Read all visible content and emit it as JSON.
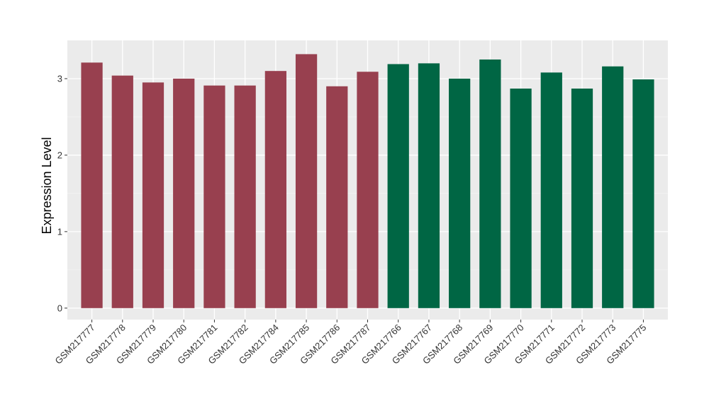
{
  "chart_data": {
    "type": "bar",
    "title": "",
    "xlabel": "",
    "ylabel": "Expression Level",
    "ylim": [
      -0.15,
      3.5
    ],
    "yticks": [
      0,
      1,
      2,
      3
    ],
    "grid": true,
    "legend": "none",
    "background": "#EBEBEB",
    "categories": [
      "GSM217777",
      "GSM217778",
      "GSM217779",
      "GSM217780",
      "GSM217781",
      "GSM217782",
      "GSM217784",
      "GSM217785",
      "GSM217786",
      "GSM217787",
      "GSM217766",
      "GSM217767",
      "GSM217768",
      "GSM217769",
      "GSM217770",
      "GSM217771",
      "GSM217772",
      "GSM217773",
      "GSM217775"
    ],
    "values": [
      3.21,
      3.04,
      2.95,
      3.0,
      2.91,
      2.91,
      3.1,
      3.32,
      2.9,
      3.09,
      3.19,
      3.2,
      3.0,
      3.25,
      2.87,
      3.08,
      2.87,
      3.16,
      2.99
    ],
    "colors": [
      "#98404F",
      "#98404F",
      "#98404F",
      "#98404F",
      "#98404F",
      "#98404F",
      "#98404F",
      "#98404F",
      "#98404F",
      "#98404F",
      "#006644",
      "#006644",
      "#006644",
      "#006644",
      "#006644",
      "#006644",
      "#006644",
      "#006644",
      "#006644"
    ]
  }
}
